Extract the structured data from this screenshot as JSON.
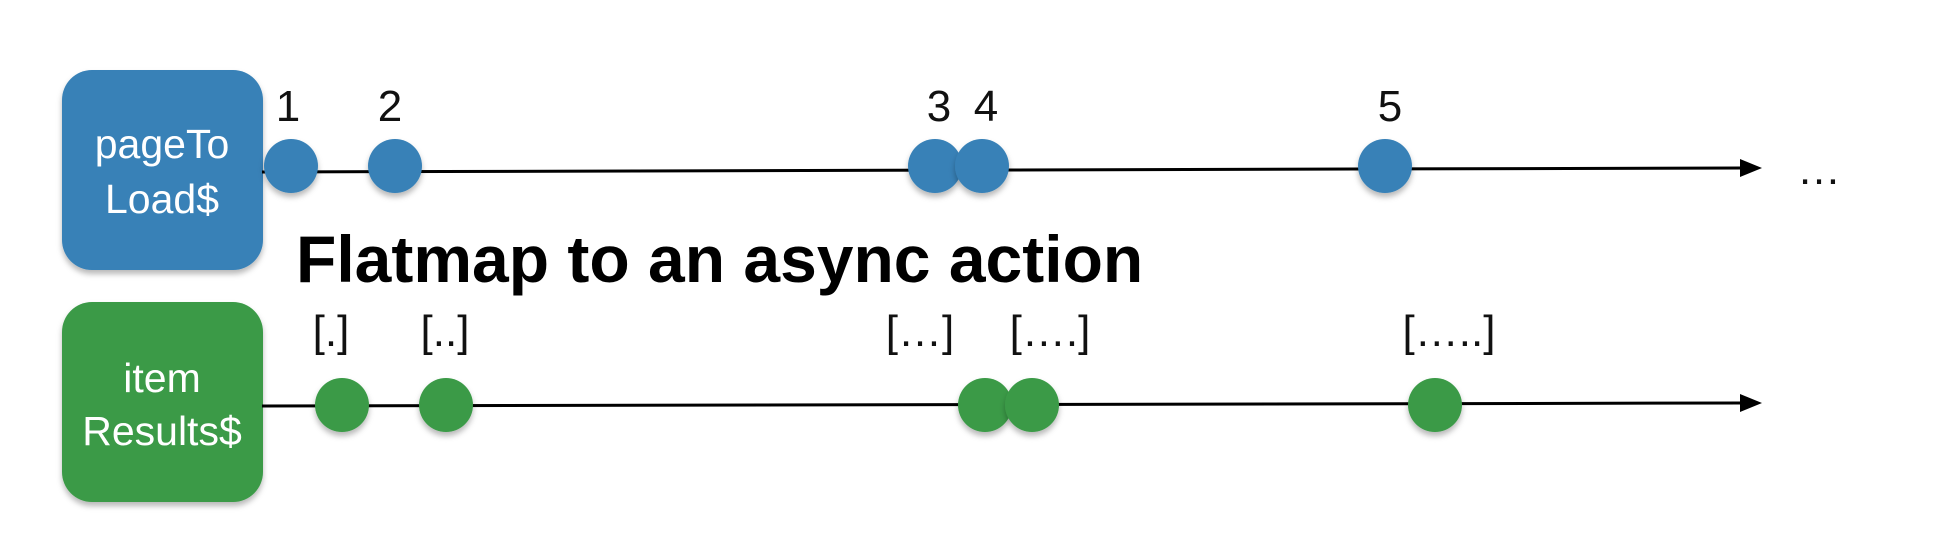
{
  "title": "Flatmap to an async action",
  "continuation": "…",
  "colors": {
    "blue": "#3781b7",
    "green": "#3b9a47",
    "line": "#000000",
    "text": "#111111"
  },
  "streams": [
    {
      "name": "pageToLoad$",
      "label_lines": [
        "pageTo",
        "Load$"
      ],
      "events": [
        {
          "label": "1"
        },
        {
          "label": "2"
        },
        {
          "label": "3"
        },
        {
          "label": "4"
        },
        {
          "label": "5"
        }
      ]
    },
    {
      "name": "itemResults$",
      "label_lines": [
        "item",
        "Results$"
      ],
      "events": [
        {
          "label": "[.]"
        },
        {
          "label": "[..]"
        },
        {
          "label": "[…]"
        },
        {
          "label": "[….]"
        },
        {
          "label": "[…..]"
        }
      ]
    }
  ]
}
